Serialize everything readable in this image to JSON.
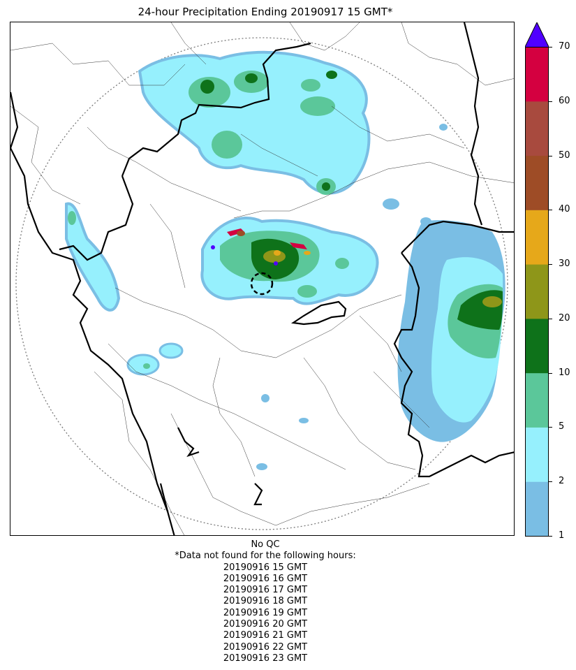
{
  "title": "24-hour Precipitation Ending 20190917 15 GMT*",
  "colorbar": {
    "ticks": [
      "1",
      "2",
      "5",
      "10",
      "20",
      "30",
      "40",
      "50",
      "60",
      "70"
    ],
    "bins": [
      {
        "from": "1",
        "to": "2",
        "color": "#7ABEE4"
      },
      {
        "from": "2",
        "to": "5",
        "color": "#96F0FD"
      },
      {
        "from": "5",
        "to": "10",
        "color": "#5BC79A"
      },
      {
        "from": "10",
        "to": "20",
        "color": "#0E721A"
      },
      {
        "from": "20",
        "to": "30",
        "color": "#8E9619"
      },
      {
        "from": "30",
        "to": "40",
        "color": "#E6A81A"
      },
      {
        "from": "40",
        "to": "50",
        "color": "#9E4C26"
      },
      {
        "from": "50",
        "to": "60",
        "color": "#A84A3E"
      },
      {
        "from": "60",
        "to": "70",
        "color": "#D40040"
      }
    ],
    "extend_color": "#5000FF"
  },
  "notes": {
    "qc": "No QC",
    "missing_header": "*Data not found for the following hours:",
    "missing_hours": [
      "20190916 15 GMT",
      "20190916 16 GMT",
      "20190916 17 GMT",
      "20190916 18 GMT",
      "20190916 19 GMT",
      "20190916 20 GMT",
      "20190916 21 GMT",
      "20190916 22 GMT",
      "20190916 23 GMT"
    ]
  }
}
